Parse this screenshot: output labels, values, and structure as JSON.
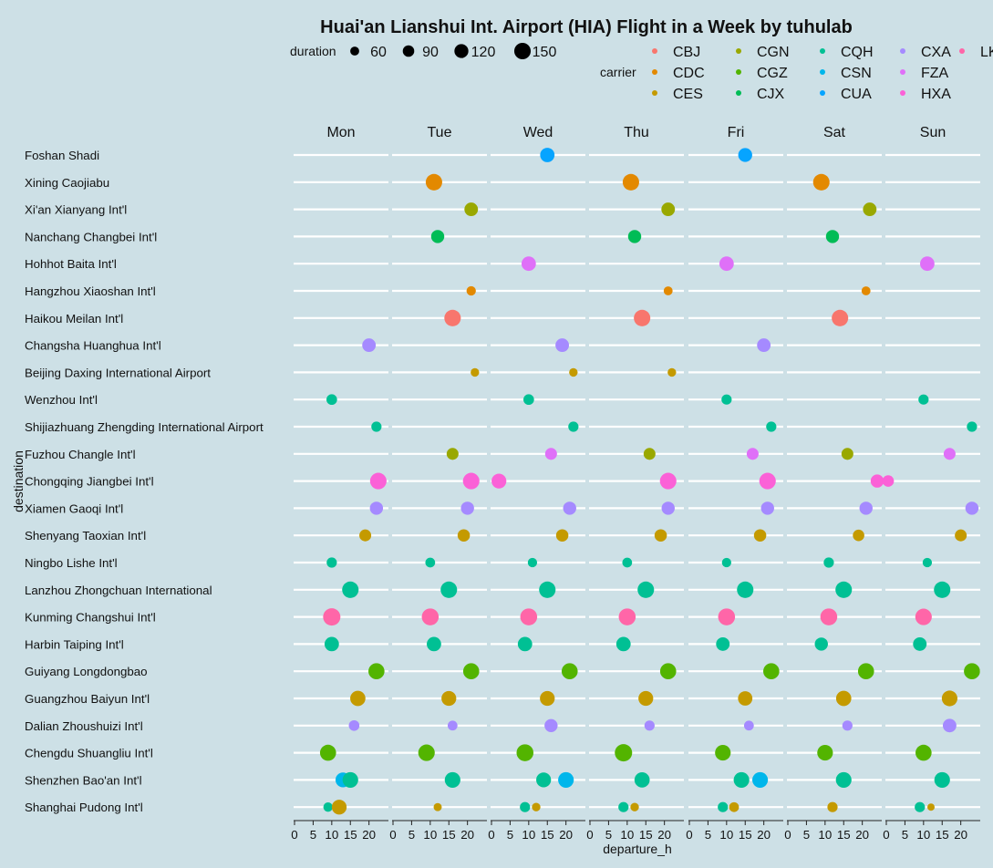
{
  "chart_data": {
    "type": "scatter",
    "title": "Huai'an Lianshui Int. Airport (HIA) Flight in a Week by tuhulab",
    "xlabel": "departure_h",
    "ylabel": "destination",
    "xlim": [
      0,
      24
    ],
    "x_ticks": [
      0,
      5,
      10,
      15,
      20
    ],
    "facets": [
      "Mon",
      "Tue",
      "Wed",
      "Thu",
      "Fri",
      "Sat",
      "Sun"
    ],
    "size_legend": {
      "title": "duration",
      "values": [
        60,
        90,
        120,
        150
      ],
      "labels": [
        "60",
        "90",
        "120",
        "150"
      ]
    },
    "color_legend": {
      "title": "carrier",
      "items": [
        {
          "name": "CBJ",
          "color": "#f8766d"
        },
        {
          "name": "CDC",
          "color": "#e38900"
        },
        {
          "name": "CES",
          "color": "#c49a00"
        },
        {
          "name": "CGN",
          "color": "#99a800"
        },
        {
          "name": "CGZ",
          "color": "#53b400"
        },
        {
          "name": "CJX",
          "color": "#00bc56"
        },
        {
          "name": "CQH",
          "color": "#00c094"
        },
        {
          "name": "CSN",
          "color": "#00b6eb"
        },
        {
          "name": "CUA",
          "color": "#06a4ff"
        },
        {
          "name": "CXA",
          "color": "#a58aff"
        },
        {
          "name": "FZA",
          "color": "#df70f8"
        },
        {
          "name": "HXA",
          "color": "#fb61d7"
        },
        {
          "name": "LKE",
          "color": "#ff66a8"
        }
      ]
    },
    "destinations": [
      "Foshan Shadi",
      "Xining Caojiabu",
      "Xi'an Xianyang Int'l",
      "Nanchang Changbei Int'l",
      "Hohhot Baita Int'l",
      "Hangzhou Xiaoshan Int'l",
      "Haikou Meilan Int'l",
      "Changsha Huanghua Int'l",
      "Beijing Daxing International Airport",
      "Wenzhou Int'l",
      "Shijiazhuang Zhengding International Airport",
      "Fuzhou Changle Int'l",
      "Chongqing Jiangbei Int'l",
      "Xiamen Gaoqi Int'l",
      "Shenyang Taoxian Int'l",
      "Ningbo Lishe Int'l",
      "Lanzhou Zhongchuan International",
      "Kunming Changshui Int'l",
      "Harbin Taiping Int'l",
      "Guiyang Longdongbao",
      "Guangzhou Baiyun Int'l",
      "Dalian Zhoushuizi Int'l",
      "Chengdu Shuangliu Int'l",
      "Shenzhen Bao'an Int'l",
      "Shanghai Pudong Int'l"
    ],
    "flights": [
      {
        "day": "Wed",
        "dest": 0,
        "carrier": "CUA",
        "x": 15,
        "duration": 125
      },
      {
        "day": "Fri",
        "dest": 0,
        "carrier": "CUA",
        "x": 15,
        "duration": 120
      },
      {
        "day": "Tue",
        "dest": 1,
        "carrier": "CDC",
        "x": 11,
        "duration": 150
      },
      {
        "day": "Thu",
        "dest": 1,
        "carrier": "CDC",
        "x": 11,
        "duration": 150
      },
      {
        "day": "Sat",
        "dest": 1,
        "carrier": "CDC",
        "x": 9,
        "duration": 150
      },
      {
        "day": "Tue",
        "dest": 2,
        "carrier": "CGN",
        "x": 21,
        "duration": 115
      },
      {
        "day": "Thu",
        "dest": 2,
        "carrier": "CGN",
        "x": 21,
        "duration": 115
      },
      {
        "day": "Sat",
        "dest": 2,
        "carrier": "CGN",
        "x": 22,
        "duration": 115
      },
      {
        "day": "Tue",
        "dest": 3,
        "carrier": "CJX",
        "x": 12,
        "duration": 110
      },
      {
        "day": "Thu",
        "dest": 3,
        "carrier": "CJX",
        "x": 12,
        "duration": 110
      },
      {
        "day": "Sat",
        "dest": 3,
        "carrier": "CJX",
        "x": 12,
        "duration": 110
      },
      {
        "day": "Wed",
        "dest": 4,
        "carrier": "FZA",
        "x": 10,
        "duration": 125
      },
      {
        "day": "Fri",
        "dest": 4,
        "carrier": "FZA",
        "x": 10,
        "duration": 125
      },
      {
        "day": "Sun",
        "dest": 4,
        "carrier": "FZA",
        "x": 11,
        "duration": 125
      },
      {
        "day": "Tue",
        "dest": 5,
        "carrier": "CDC",
        "x": 21,
        "duration": 65
      },
      {
        "day": "Thu",
        "dest": 5,
        "carrier": "CDC",
        "x": 21,
        "duration": 60
      },
      {
        "day": "Sat",
        "dest": 5,
        "carrier": "CDC",
        "x": 21,
        "duration": 60
      },
      {
        "day": "Tue",
        "dest": 6,
        "carrier": "CBJ",
        "x": 16,
        "duration": 150
      },
      {
        "day": "Thu",
        "dest": 6,
        "carrier": "CBJ",
        "x": 14,
        "duration": 150
      },
      {
        "day": "Sat",
        "dest": 6,
        "carrier": "CBJ",
        "x": 14,
        "duration": 150
      },
      {
        "day": "Mon",
        "dest": 7,
        "carrier": "CXA",
        "x": 20,
        "duration": 115
      },
      {
        "day": "Wed",
        "dest": 7,
        "carrier": "CXA",
        "x": 19,
        "duration": 115
      },
      {
        "day": "Fri",
        "dest": 7,
        "carrier": "CXA",
        "x": 20,
        "duration": 115
      },
      {
        "day": "Tue",
        "dest": 8,
        "carrier": "CES",
        "x": 22,
        "duration": 55
      },
      {
        "day": "Wed",
        "dest": 8,
        "carrier": "CES",
        "x": 22,
        "duration": 55
      },
      {
        "day": "Thu",
        "dest": 8,
        "carrier": "CES",
        "x": 22,
        "duration": 55
      },
      {
        "day": "Mon",
        "dest": 9,
        "carrier": "CQH",
        "x": 10,
        "duration": 80
      },
      {
        "day": "Wed",
        "dest": 9,
        "carrier": "CQH",
        "x": 10,
        "duration": 80
      },
      {
        "day": "Fri",
        "dest": 9,
        "carrier": "CQH",
        "x": 10,
        "duration": 75
      },
      {
        "day": "Sun",
        "dest": 9,
        "carrier": "CQH",
        "x": 10,
        "duration": 75
      },
      {
        "day": "Mon",
        "dest": 10,
        "carrier": "CQH",
        "x": 22,
        "duration": 75
      },
      {
        "day": "Wed",
        "dest": 10,
        "carrier": "CQH",
        "x": 22,
        "duration": 75
      },
      {
        "day": "Fri",
        "dest": 10,
        "carrier": "CQH",
        "x": 22,
        "duration": 75
      },
      {
        "day": "Sun",
        "dest": 10,
        "carrier": "CQH",
        "x": 23,
        "duration": 75
      },
      {
        "day": "Tue",
        "dest": 11,
        "carrier": "CGN",
        "x": 16,
        "duration": 95
      },
      {
        "day": "Wed",
        "dest": 11,
        "carrier": "FZA",
        "x": 16,
        "duration": 95
      },
      {
        "day": "Thu",
        "dest": 11,
        "carrier": "CGN",
        "x": 16,
        "duration": 95
      },
      {
        "day": "Fri",
        "dest": 11,
        "carrier": "FZA",
        "x": 17,
        "duration": 95
      },
      {
        "day": "Sat",
        "dest": 11,
        "carrier": "CGN",
        "x": 16,
        "duration": 95
      },
      {
        "day": "Sun",
        "dest": 11,
        "carrier": "FZA",
        "x": 17,
        "duration": 95
      },
      {
        "day": "Mon",
        "dest": 12,
        "carrier": "HXA",
        "x": 22.5,
        "duration": 150
      },
      {
        "day": "Tue",
        "dest": 12,
        "carrier": "HXA",
        "x": 21,
        "duration": 150
      },
      {
        "day": "Wed",
        "dest": 12,
        "carrier": "HXA",
        "x": 2,
        "duration": 130
      },
      {
        "day": "Thu",
        "dest": 12,
        "carrier": "HXA",
        "x": 21,
        "duration": 150
      },
      {
        "day": "Fri",
        "dest": 12,
        "carrier": "HXA",
        "x": 21,
        "duration": 150
      },
      {
        "day": "Sat",
        "dest": 12,
        "carrier": "HXA",
        "x": 24,
        "duration": 110
      },
      {
        "day": "Sun",
        "dest": 12,
        "carrier": "HXA",
        "x": 0.5,
        "duration": 90
      },
      {
        "day": "Mon",
        "dest": 13,
        "carrier": "CXA",
        "x": 22,
        "duration": 110
      },
      {
        "day": "Tue",
        "dest": 13,
        "carrier": "CXA",
        "x": 20,
        "duration": 110
      },
      {
        "day": "Wed",
        "dest": 13,
        "carrier": "CXA",
        "x": 21,
        "duration": 110
      },
      {
        "day": "Thu",
        "dest": 13,
        "carrier": "CXA",
        "x": 21,
        "duration": 110
      },
      {
        "day": "Fri",
        "dest": 13,
        "carrier": "CXA",
        "x": 21,
        "duration": 110
      },
      {
        "day": "Sat",
        "dest": 13,
        "carrier": "CXA",
        "x": 21,
        "duration": 110
      },
      {
        "day": "Sun",
        "dest": 13,
        "carrier": "CXA",
        "x": 23,
        "duration": 110
      },
      {
        "day": "Mon",
        "dest": 14,
        "carrier": "CES",
        "x": 19,
        "duration": 95
      },
      {
        "day": "Tue",
        "dest": 14,
        "carrier": "CES",
        "x": 19,
        "duration": 100
      },
      {
        "day": "Wed",
        "dest": 14,
        "carrier": "CES",
        "x": 19,
        "duration": 100
      },
      {
        "day": "Thu",
        "dest": 14,
        "carrier": "CES",
        "x": 19,
        "duration": 100
      },
      {
        "day": "Fri",
        "dest": 14,
        "carrier": "CES",
        "x": 19,
        "duration": 100
      },
      {
        "day": "Sat",
        "dest": 14,
        "carrier": "CES",
        "x": 19,
        "duration": 90
      },
      {
        "day": "Sun",
        "dest": 14,
        "carrier": "CES",
        "x": 20,
        "duration": 95
      },
      {
        "day": "Mon",
        "dest": 15,
        "carrier": "CQH",
        "x": 10,
        "duration": 75
      },
      {
        "day": "Tue",
        "dest": 15,
        "carrier": "CQH",
        "x": 10,
        "duration": 70
      },
      {
        "day": "Wed",
        "dest": 15,
        "carrier": "CQH",
        "x": 11,
        "duration": 65
      },
      {
        "day": "Thu",
        "dest": 15,
        "carrier": "CQH",
        "x": 10,
        "duration": 70
      },
      {
        "day": "Fri",
        "dest": 15,
        "carrier": "CQH",
        "x": 10,
        "duration": 65
      },
      {
        "day": "Sat",
        "dest": 15,
        "carrier": "CQH",
        "x": 11,
        "duration": 75
      },
      {
        "day": "Sun",
        "dest": 15,
        "carrier": "CQH",
        "x": 11,
        "duration": 65
      },
      {
        "day": "Mon",
        "dest": 16,
        "carrier": "CQH",
        "x": 15,
        "duration": 150
      },
      {
        "day": "Tue",
        "dest": 16,
        "carrier": "CQH",
        "x": 15,
        "duration": 150
      },
      {
        "day": "Wed",
        "dest": 16,
        "carrier": "CQH",
        "x": 15,
        "duration": 150
      },
      {
        "day": "Thu",
        "dest": 16,
        "carrier": "CQH",
        "x": 15,
        "duration": 150
      },
      {
        "day": "Fri",
        "dest": 16,
        "carrier": "CQH",
        "x": 15,
        "duration": 150
      },
      {
        "day": "Sat",
        "dest": 16,
        "carrier": "CQH",
        "x": 15,
        "duration": 150
      },
      {
        "day": "Sun",
        "dest": 16,
        "carrier": "CQH",
        "x": 15,
        "duration": 150
      },
      {
        "day": "Mon",
        "dest": 17,
        "carrier": "LKE",
        "x": 10,
        "duration": 160
      },
      {
        "day": "Tue",
        "dest": 17,
        "carrier": "LKE",
        "x": 10,
        "duration": 155
      },
      {
        "day": "Wed",
        "dest": 17,
        "carrier": "LKE",
        "x": 10,
        "duration": 155
      },
      {
        "day": "Thu",
        "dest": 17,
        "carrier": "LKE",
        "x": 10,
        "duration": 155
      },
      {
        "day": "Fri",
        "dest": 17,
        "carrier": "LKE",
        "x": 10,
        "duration": 155
      },
      {
        "day": "Sat",
        "dest": 17,
        "carrier": "LKE",
        "x": 11,
        "duration": 155
      },
      {
        "day": "Sun",
        "dest": 17,
        "carrier": "LKE",
        "x": 10,
        "duration": 150
      },
      {
        "day": "Mon",
        "dest": 18,
        "carrier": "CQH",
        "x": 10,
        "duration": 125
      },
      {
        "day": "Tue",
        "dest": 18,
        "carrier": "CQH",
        "x": 11,
        "duration": 125
      },
      {
        "day": "Wed",
        "dest": 18,
        "carrier": "CQH",
        "x": 9,
        "duration": 125
      },
      {
        "day": "Thu",
        "dest": 18,
        "carrier": "CQH",
        "x": 9,
        "duration": 125
      },
      {
        "day": "Fri",
        "dest": 18,
        "carrier": "CQH",
        "x": 9,
        "duration": 115
      },
      {
        "day": "Sat",
        "dest": 18,
        "carrier": "CQH",
        "x": 9,
        "duration": 110
      },
      {
        "day": "Sun",
        "dest": 18,
        "carrier": "CQH",
        "x": 9,
        "duration": 115
      },
      {
        "day": "Mon",
        "dest": 19,
        "carrier": "CGZ",
        "x": 22,
        "duration": 145
      },
      {
        "day": "Tue",
        "dest": 19,
        "carrier": "CGZ",
        "x": 21,
        "duration": 145
      },
      {
        "day": "Wed",
        "dest": 19,
        "carrier": "CGZ",
        "x": 21,
        "duration": 145
      },
      {
        "day": "Thu",
        "dest": 19,
        "carrier": "CGZ",
        "x": 21,
        "duration": 145
      },
      {
        "day": "Fri",
        "dest": 19,
        "carrier": "CGZ",
        "x": 22,
        "duration": 145
      },
      {
        "day": "Sat",
        "dest": 19,
        "carrier": "CGZ",
        "x": 21,
        "duration": 145
      },
      {
        "day": "Sun",
        "dest": 19,
        "carrier": "CGZ",
        "x": 23,
        "duration": 145
      },
      {
        "day": "Mon",
        "dest": 20,
        "carrier": "CES",
        "x": 17,
        "duration": 135
      },
      {
        "day": "Tue",
        "dest": 20,
        "carrier": "CES",
        "x": 15,
        "duration": 130
      },
      {
        "day": "Wed",
        "dest": 20,
        "carrier": "CES",
        "x": 15,
        "duration": 130
      },
      {
        "day": "Thu",
        "dest": 20,
        "carrier": "CES",
        "x": 15,
        "duration": 130
      },
      {
        "day": "Fri",
        "dest": 20,
        "carrier": "CES",
        "x": 15,
        "duration": 125
      },
      {
        "day": "Sat",
        "dest": 20,
        "carrier": "CES",
        "x": 15,
        "duration": 135
      },
      {
        "day": "Sun",
        "dest": 20,
        "carrier": "CES",
        "x": 17,
        "duration": 140
      },
      {
        "day": "Mon",
        "dest": 21,
        "carrier": "CXA",
        "x": 16,
        "duration": 80
      },
      {
        "day": "Tue",
        "dest": 21,
        "carrier": "CXA",
        "x": 16,
        "duration": 70
      },
      {
        "day": "Wed",
        "dest": 21,
        "carrier": "CXA",
        "x": 16,
        "duration": 110
      },
      {
        "day": "Thu",
        "dest": 21,
        "carrier": "CXA",
        "x": 16,
        "duration": 75
      },
      {
        "day": "Fri",
        "dest": 21,
        "carrier": "CXA",
        "x": 16,
        "duration": 70
      },
      {
        "day": "Sat",
        "dest": 21,
        "carrier": "CXA",
        "x": 16,
        "duration": 75
      },
      {
        "day": "Sun",
        "dest": 21,
        "carrier": "CXA",
        "x": 17,
        "duration": 115
      },
      {
        "day": "Mon",
        "dest": 22,
        "carrier": "CGZ",
        "x": 9,
        "duration": 145
      },
      {
        "day": "Tue",
        "dest": 22,
        "carrier": "CGZ",
        "x": 9,
        "duration": 150
      },
      {
        "day": "Wed",
        "dest": 22,
        "carrier": "CGZ",
        "x": 9,
        "duration": 155
      },
      {
        "day": "Thu",
        "dest": 22,
        "carrier": "CGZ",
        "x": 9,
        "duration": 160
      },
      {
        "day": "Fri",
        "dest": 22,
        "carrier": "CGZ",
        "x": 9,
        "duration": 140
      },
      {
        "day": "Sat",
        "dest": 22,
        "carrier": "CGZ",
        "x": 10,
        "duration": 140
      },
      {
        "day": "Sun",
        "dest": 22,
        "carrier": "CGZ",
        "x": 10,
        "duration": 145
      },
      {
        "day": "Mon",
        "dest": 23,
        "carrier": "CSN",
        "x": 13,
        "duration": 130
      },
      {
        "day": "Mon",
        "dest": 23,
        "carrier": "CQH",
        "x": 15,
        "duration": 140
      },
      {
        "day": "Tue",
        "dest": 23,
        "carrier": "CQH",
        "x": 16,
        "duration": 140
      },
      {
        "day": "Wed",
        "dest": 23,
        "carrier": "CQH",
        "x": 14,
        "duration": 130
      },
      {
        "day": "Wed",
        "dest": 23,
        "carrier": "CSN",
        "x": 20,
        "duration": 140
      },
      {
        "day": "Thu",
        "dest": 23,
        "carrier": "CQH",
        "x": 14,
        "duration": 135
      },
      {
        "day": "Fri",
        "dest": 23,
        "carrier": "CQH",
        "x": 14,
        "duration": 140
      },
      {
        "day": "Fri",
        "dest": 23,
        "carrier": "CSN",
        "x": 19,
        "duration": 140
      },
      {
        "day": "Sat",
        "dest": 23,
        "carrier": "CQH",
        "x": 15,
        "duration": 140
      },
      {
        "day": "Sun",
        "dest": 23,
        "carrier": "CQH",
        "x": 15,
        "duration": 140
      },
      {
        "day": "Mon",
        "dest": 24,
        "carrier": "CQH",
        "x": 9,
        "duration": 65
      },
      {
        "day": "Mon",
        "dest": 24,
        "carrier": "CES",
        "x": 12,
        "duration": 130
      },
      {
        "day": "Tue",
        "dest": 24,
        "carrier": "CES",
        "x": 12,
        "duration": 50
      },
      {
        "day": "Wed",
        "dest": 24,
        "carrier": "CQH",
        "x": 9,
        "duration": 75
      },
      {
        "day": "Wed",
        "dest": 24,
        "carrier": "CES",
        "x": 12,
        "duration": 55
      },
      {
        "day": "Thu",
        "dest": 24,
        "carrier": "CQH",
        "x": 9,
        "duration": 75
      },
      {
        "day": "Thu",
        "dest": 24,
        "carrier": "CES",
        "x": 12,
        "duration": 55
      },
      {
        "day": "Fri",
        "dest": 24,
        "carrier": "CQH",
        "x": 9,
        "duration": 75
      },
      {
        "day": "Fri",
        "dest": 24,
        "carrier": "CES",
        "x": 12,
        "duration": 70
      },
      {
        "day": "Sat",
        "dest": 24,
        "carrier": "CES",
        "x": 12,
        "duration": 75
      },
      {
        "day": "Sun",
        "dest": 24,
        "carrier": "CQH",
        "x": 9,
        "duration": 75
      },
      {
        "day": "Sun",
        "dest": 24,
        "carrier": "CES",
        "x": 12,
        "duration": 40
      }
    ]
  }
}
